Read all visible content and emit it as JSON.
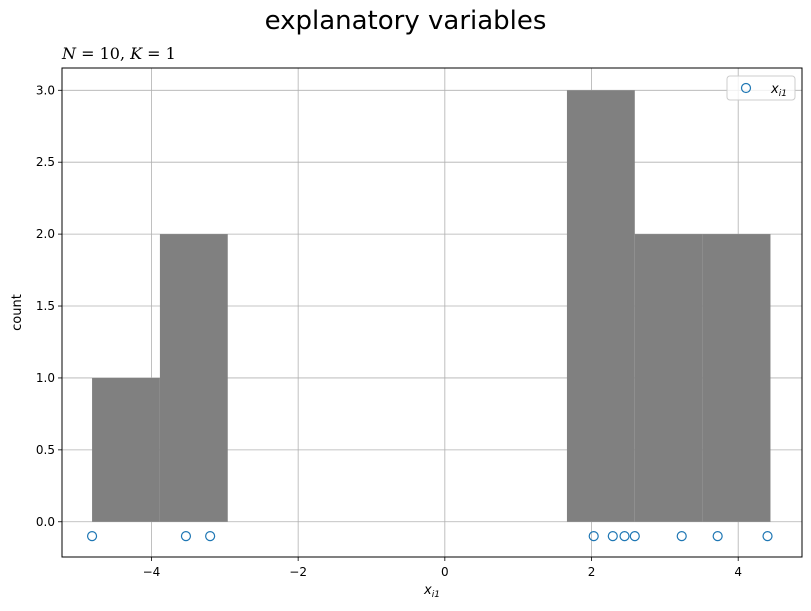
{
  "chart_data": {
    "type": "histogram",
    "title": "explanatory variables",
    "subtitle": "N = 10, K = 1",
    "xlabel": "x_i1",
    "ylabel": "count",
    "xlim": [
      -5.22,
      4.87
    ],
    "ylim": [
      -0.245,
      3.155
    ],
    "grid": true,
    "legend": {
      "placement": "top-right",
      "entries": [
        "x_i1"
      ]
    },
    "bar_color": "#808080",
    "marker_color": "#1f77b4",
    "xticks": [
      -4,
      -2,
      0,
      2,
      4
    ],
    "yticks": [
      0.0,
      0.5,
      1.0,
      1.5,
      2.0,
      2.5,
      3.0
    ],
    "bins": [
      {
        "x0": -4.81,
        "x1": -3.885,
        "count": 1
      },
      {
        "x0": -3.885,
        "x1": -2.96,
        "count": 2
      },
      {
        "x0": 1.665,
        "x1": 2.59,
        "count": 3
      },
      {
        "x0": 2.59,
        "x1": 3.515,
        "count": 2
      },
      {
        "x0": 3.515,
        "x1": 4.44,
        "count": 2
      }
    ],
    "points": {
      "y": -0.1,
      "x": [
        -4.81,
        -3.53,
        -3.2,
        2.03,
        2.29,
        2.45,
        2.59,
        3.23,
        3.72,
        4.4
      ]
    }
  }
}
